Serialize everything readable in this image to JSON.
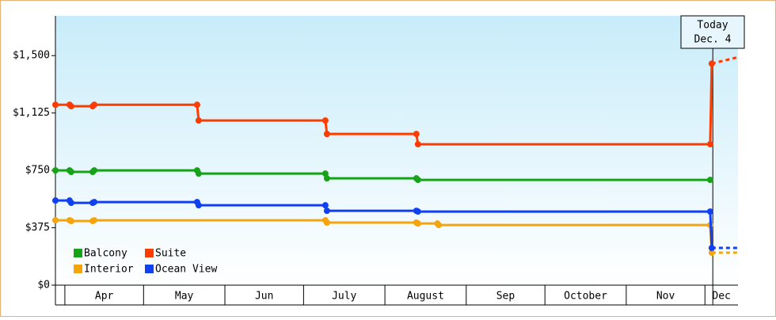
{
  "chart_data": {
    "type": "line",
    "ylim": [
      0,
      1760
    ],
    "yticks": [
      {
        "value": 0,
        "label": "$0"
      },
      {
        "value": 375,
        "label": "$375"
      },
      {
        "value": 750,
        "label": "$750"
      },
      {
        "value": 1125,
        "label": "$1,125"
      },
      {
        "value": 1500,
        "label": "$1,500"
      }
    ],
    "xlim": [
      -3.6,
      256.6
    ],
    "xticks": [
      {
        "value": 0,
        "label": "Apr"
      },
      {
        "value": 30,
        "label": "May"
      },
      {
        "value": 61,
        "label": "Jun"
      },
      {
        "value": 91,
        "label": "July"
      },
      {
        "value": 122,
        "label": "August"
      },
      {
        "value": 153,
        "label": "Sep"
      },
      {
        "value": 183,
        "label": "October"
      },
      {
        "value": 214,
        "label": "Nov"
      },
      {
        "value": 244,
        "label": "Dec"
      }
    ],
    "today": {
      "x": 247,
      "label": [
        "Today",
        "Dec. 4"
      ]
    },
    "legend": "bottom-left",
    "series": [
      {
        "name": "Balcony",
        "color": "#17a317",
        "x": [
          -3.6,
          1.8,
          2.4,
          10.6,
          11.2,
          50.4,
          51,
          99.3,
          99.9,
          134,
          134.6,
          246
        ],
        "values": [
          750,
          750,
          740,
          740,
          750,
          750,
          729,
          729,
          698,
          698,
          688,
          688
        ]
      },
      {
        "name": "Suite",
        "color": "#ff3c00",
        "x": [
          -3.6,
          1.8,
          2.4,
          10.6,
          11.2,
          50.4,
          51,
          99.3,
          99.9,
          134,
          134.6,
          246,
          246.6,
          256.6
        ],
        "values": [
          1179,
          1179,
          1169,
          1169,
          1179,
          1179,
          1076,
          1076,
          988,
          988,
          921,
          921,
          1448,
          1490
        ]
      },
      {
        "name": "Interior",
        "color": "#f5a40a",
        "x": [
          -3.6,
          1.8,
          2.4,
          10.6,
          11.2,
          99.3,
          99.9,
          134,
          134.6,
          142,
          142.5,
          246,
          246.6,
          256.6
        ],
        "values": [
          424,
          424,
          419,
          419,
          424,
          424,
          409,
          409,
          403,
          403,
          393,
          393,
          212,
          212
        ]
      },
      {
        "name": "Ocean View",
        "color": "#1040f0",
        "x": [
          -3.6,
          1.8,
          2.4,
          10.6,
          11.2,
          50.4,
          51,
          99.3,
          99.9,
          134,
          134.6,
          246,
          246.6,
          256.6
        ],
        "values": [
          553,
          553,
          538,
          538,
          543,
          543,
          522,
          522,
          486,
          486,
          481,
          481,
          243,
          243
        ]
      }
    ]
  }
}
